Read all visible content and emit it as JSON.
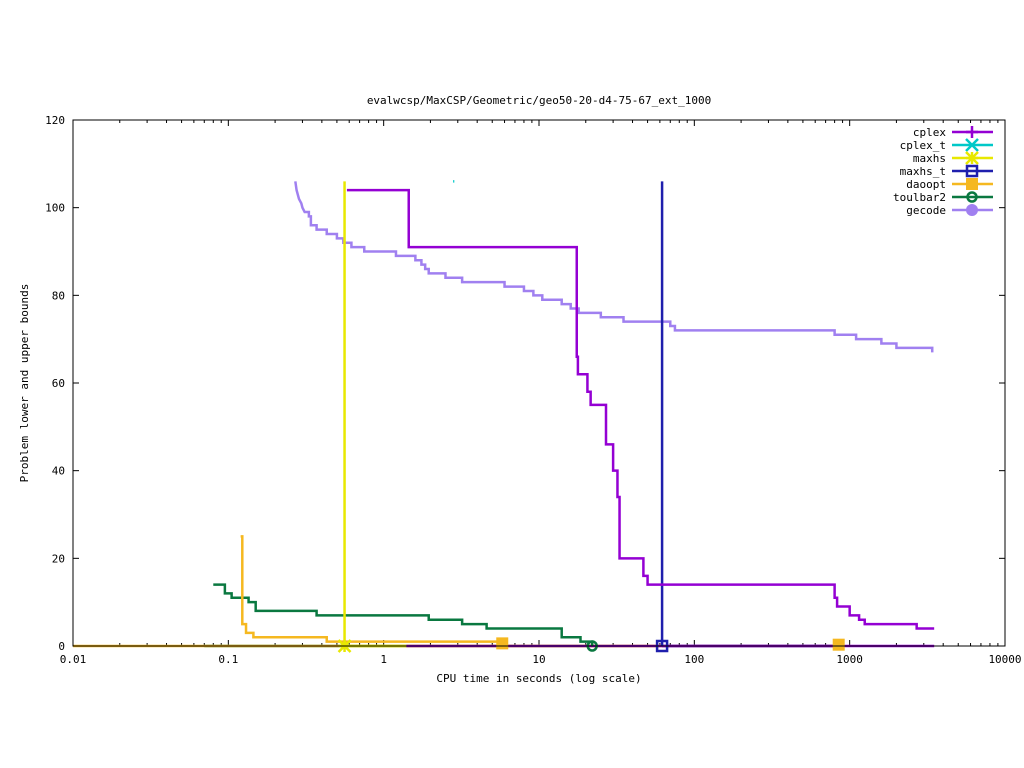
{
  "chart_data": {
    "type": "line",
    "title": "evalwcsp/MaxCSP/Geometric/geo50-20-d4-75-67_ext_1000",
    "xlabel": "CPU time in seconds (log scale)",
    "ylabel": "Problem lower and upper bounds",
    "xscale": "log",
    "xlim": [
      0.01,
      10000
    ],
    "ylim": [
      0,
      120
    ],
    "x_ticks": [
      0.01,
      0.1,
      1,
      10,
      100,
      1000,
      10000
    ],
    "x_tick_labels": [
      "0.01",
      "0.1",
      "1",
      "10",
      "100",
      "1000",
      "10000"
    ],
    "y_ticks": [
      0,
      20,
      40,
      60,
      80,
      100,
      120
    ],
    "y_tick_labels": [
      "0",
      "20",
      "40",
      "60",
      "80",
      "100",
      "120"
    ],
    "grid": false,
    "legend_position": "top-right",
    "series": [
      {
        "name": "cplex",
        "color": "#9400d3",
        "marker": "plus",
        "upper": [
          [
            0.58,
            104
          ],
          [
            1.45,
            104
          ],
          [
            1.45,
            91
          ],
          [
            17.5,
            91
          ],
          [
            17.5,
            66
          ],
          [
            17.8,
            66
          ],
          [
            17.8,
            62
          ],
          [
            20.5,
            62
          ],
          [
            20.5,
            58
          ],
          [
            21.5,
            58
          ],
          [
            21.5,
            55
          ],
          [
            27,
            55
          ],
          [
            27,
            46
          ],
          [
            30,
            46
          ],
          [
            30,
            40
          ],
          [
            32,
            40
          ],
          [
            32,
            34
          ],
          [
            33,
            34
          ],
          [
            33,
            20
          ],
          [
            47,
            20
          ],
          [
            47,
            16
          ],
          [
            50,
            16
          ],
          [
            50,
            14
          ],
          [
            800,
            14
          ],
          [
            800,
            11
          ],
          [
            830,
            11
          ],
          [
            830,
            9
          ],
          [
            1000,
            9
          ],
          [
            1000,
            7
          ],
          [
            1150,
            7
          ],
          [
            1150,
            6
          ],
          [
            1250,
            6
          ],
          [
            1250,
            5
          ],
          [
            2700,
            5
          ],
          [
            2700,
            4
          ],
          [
            3500,
            4
          ]
        ],
        "lower": [
          [
            1.4,
            0
          ],
          [
            3500,
            0
          ]
        ],
        "markers": []
      },
      {
        "name": "cplex_t",
        "color": "#00c8c8",
        "marker": "x",
        "upper": [
          [
            2.8,
            106
          ],
          [
            2.85,
            106
          ]
        ],
        "lower": [],
        "markers": []
      },
      {
        "name": "maxhs",
        "color": "#e8e800",
        "marker": "star",
        "upper": [
          [
            0.56,
            106
          ],
          [
            0.56,
            0
          ]
        ],
        "lower": [
          [
            0.56,
            0
          ],
          [
            60,
            0
          ]
        ],
        "markers": [
          [
            0.56,
            0
          ]
        ]
      },
      {
        "name": "maxhs_t",
        "color": "#1f1fad",
        "marker": "square-open",
        "upper": [
          [
            62,
            106
          ],
          [
            62,
            0
          ]
        ],
        "lower": [
          [
            62,
            0
          ],
          [
            800,
            0
          ]
        ],
        "markers": [
          [
            62,
            0
          ]
        ]
      },
      {
        "name": "daoopt",
        "color": "#f5b820",
        "marker": "square-filled",
        "upper": [
          [
            0.12,
            25
          ],
          [
            0.123,
            25
          ],
          [
            0.123,
            5
          ],
          [
            0.13,
            5
          ],
          [
            0.13,
            3
          ],
          [
            0.145,
            3
          ],
          [
            0.145,
            2
          ],
          [
            0.43,
            2
          ],
          [
            0.43,
            1
          ],
          [
            5.8,
            1
          ]
        ],
        "lower": [
          [
            0.01,
            0
          ],
          [
            850,
            0
          ]
        ],
        "markers": [
          [
            5.8,
            0.6
          ],
          [
            850,
            0.3
          ]
        ]
      },
      {
        "name": "toulbar2",
        "color": "#0a7840",
        "marker": "circle-open",
        "upper": [
          [
            0.08,
            14
          ],
          [
            0.095,
            14
          ],
          [
            0.095,
            12
          ],
          [
            0.105,
            12
          ],
          [
            0.105,
            11
          ],
          [
            0.135,
            11
          ],
          [
            0.135,
            10
          ],
          [
            0.15,
            10
          ],
          [
            0.15,
            8
          ],
          [
            0.37,
            8
          ],
          [
            0.37,
            7
          ],
          [
            1.95,
            7
          ],
          [
            1.95,
            6
          ],
          [
            3.2,
            6
          ],
          [
            3.2,
            5
          ],
          [
            4.6,
            5
          ],
          [
            4.6,
            4
          ],
          [
            14,
            4
          ],
          [
            14,
            2
          ],
          [
            18.5,
            2
          ],
          [
            18.5,
            1
          ],
          [
            22,
            1
          ],
          [
            22,
            0
          ]
        ],
        "lower": [
          [
            0.07,
            0
          ],
          [
            22,
            0
          ]
        ],
        "markers": [
          [
            22,
            0
          ]
        ]
      },
      {
        "name": "gecode",
        "color": "#a080f0",
        "marker": "circle-filled",
        "upper": [
          [
            0.27,
            106
          ],
          [
            0.275,
            104
          ],
          [
            0.285,
            102
          ],
          [
            0.295,
            101
          ],
          [
            0.3,
            100
          ],
          [
            0.31,
            99
          ],
          [
            0.33,
            99
          ],
          [
            0.33,
            98
          ],
          [
            0.34,
            98
          ],
          [
            0.34,
            96
          ],
          [
            0.37,
            96
          ],
          [
            0.37,
            95
          ],
          [
            0.43,
            95
          ],
          [
            0.43,
            94
          ],
          [
            0.5,
            94
          ],
          [
            0.5,
            93
          ],
          [
            0.55,
            93
          ],
          [
            0.55,
            92
          ],
          [
            0.62,
            92
          ],
          [
            0.62,
            91
          ],
          [
            0.75,
            91
          ],
          [
            0.75,
            90
          ],
          [
            1.2,
            90
          ],
          [
            1.2,
            89
          ],
          [
            1.6,
            89
          ],
          [
            1.6,
            88
          ],
          [
            1.75,
            88
          ],
          [
            1.75,
            87
          ],
          [
            1.85,
            87
          ],
          [
            1.85,
            86
          ],
          [
            1.95,
            86
          ],
          [
            1.95,
            85
          ],
          [
            2.5,
            85
          ],
          [
            2.5,
            84
          ],
          [
            3.2,
            84
          ],
          [
            3.2,
            83
          ],
          [
            6,
            83
          ],
          [
            6,
            82
          ],
          [
            8,
            82
          ],
          [
            8,
            81
          ],
          [
            9.2,
            81
          ],
          [
            9.2,
            80
          ],
          [
            10.5,
            80
          ],
          [
            10.5,
            79
          ],
          [
            14,
            79
          ],
          [
            14,
            78
          ],
          [
            16,
            78
          ],
          [
            16,
            77
          ],
          [
            18,
            77
          ],
          [
            18,
            76
          ],
          [
            25,
            76
          ],
          [
            25,
            75
          ],
          [
            35,
            75
          ],
          [
            35,
            74
          ],
          [
            70,
            74
          ],
          [
            70,
            73
          ],
          [
            75,
            73
          ],
          [
            75,
            72
          ],
          [
            800,
            72
          ],
          [
            800,
            71
          ],
          [
            1100,
            71
          ],
          [
            1100,
            70
          ],
          [
            1600,
            70
          ],
          [
            1600,
            69
          ],
          [
            2000,
            69
          ],
          [
            2000,
            68
          ],
          [
            3400,
            68
          ],
          [
            3400,
            67
          ]
        ],
        "lower": [],
        "markers": []
      }
    ]
  }
}
